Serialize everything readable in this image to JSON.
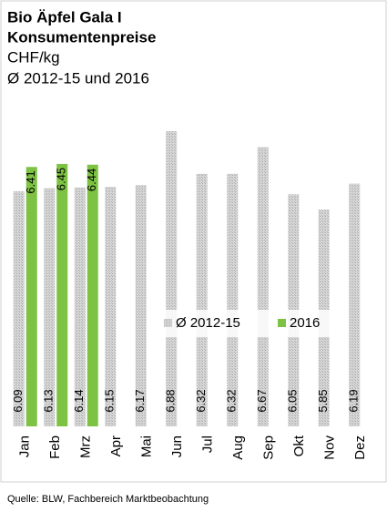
{
  "chart_data": {
    "type": "bar",
    "title": "Bio Äpfel Gala I",
    "subtitle": "Konsumentenpreise",
    "unit": "CHF/kg",
    "subtitle2": "Ø 2012-15 und 2016",
    "source": "Quelle: BLW, Fachbereich Marktbeobachtung",
    "categories": [
      "Jan",
      "Feb",
      "Mrz",
      "Apr",
      "Mai",
      "Jun",
      "Jul",
      "Aug",
      "Sep",
      "Okt",
      "Nov",
      "Dez"
    ],
    "series": [
      {
        "name": "Ø 2012-15",
        "color": "#c4c4c4",
        "values": [
          6.09,
          6.13,
          6.14,
          6.15,
          6.17,
          6.88,
          6.32,
          6.32,
          6.67,
          6.05,
          5.85,
          6.19
        ]
      },
      {
        "name": "2016",
        "color": "#7dc242",
        "values": [
          6.41,
          6.45,
          6.44,
          null,
          null,
          null,
          null,
          null,
          null,
          null,
          null,
          null
        ]
      }
    ],
    "ylim": [
      3,
      7
    ],
    "legend": "center"
  }
}
